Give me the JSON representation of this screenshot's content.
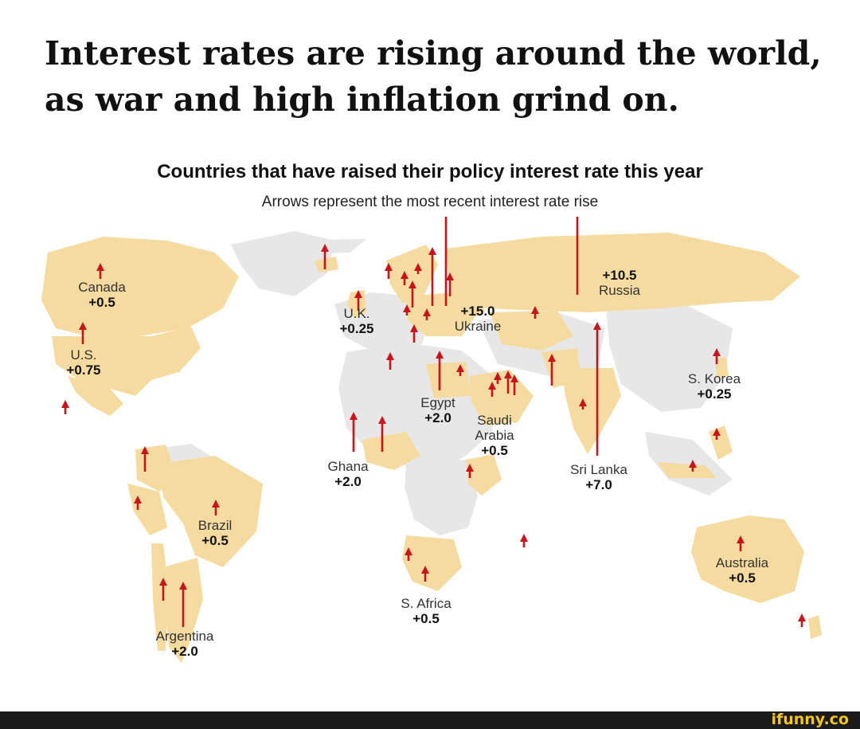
{
  "headline": "Interest rates are rising around the world, as war and high inflation grind on.",
  "chart": {
    "title": "Countries that have raised their policy interest rate this year",
    "subtitle": "Arrows represent the most recent interest rate rise"
  },
  "labels": {
    "canada": {
      "name": "Canada",
      "value": "+0.5"
    },
    "us": {
      "name": "U.S.",
      "value": "+0.75"
    },
    "uk": {
      "name": "U.K.",
      "value": "+0.25"
    },
    "russia": {
      "value": "+10.5",
      "name": "Russia"
    },
    "ukraine": {
      "value": "+15.0",
      "name": "Ukraine"
    },
    "skorea": {
      "name": "S. Korea",
      "value": "+0.25"
    },
    "egypt": {
      "name": "Egypt",
      "value": "+2.0"
    },
    "saudi": {
      "name": "Saudi Arabia",
      "value": "+0.5"
    },
    "ghana": {
      "name": "Ghana",
      "value": "+2.0"
    },
    "srilanka": {
      "name": "Sri Lanka",
      "value": "+7.0"
    },
    "brazil": {
      "name": "Brazil",
      "value": "+0.5"
    },
    "australia": {
      "name": "Australia",
      "value": "+0.5"
    },
    "safrica": {
      "name": "S. Africa",
      "value": "+0.5"
    },
    "argentina": {
      "name": "Argentina",
      "value": "+2.0"
    }
  },
  "colors": {
    "raised": "#f6dba0",
    "land": "#e7e7e7",
    "arrow": "#c8141b"
  },
  "footer": {
    "brand": "ifunny.co"
  }
}
